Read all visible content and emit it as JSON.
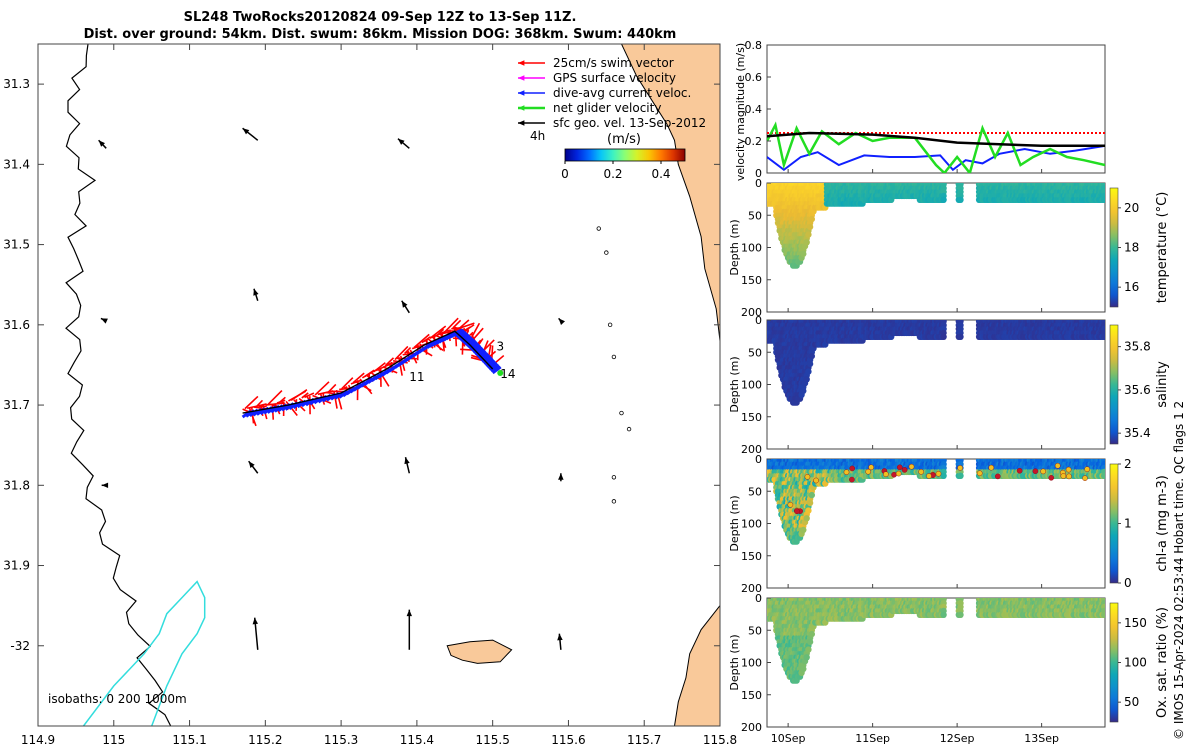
{
  "title": {
    "line1": "SL248 TwoRocks20120824 09-Sep 12Z to 13-Sep 11Z.",
    "line2": "Dist. over ground: 54km. Dist. swum: 86km. Mission DOG: 368km. Swum: 440km"
  },
  "credit": "© IMOS 15-Apr-2024 02:53:44 Hobart time. QC flags 1  2",
  "colors": {
    "land": "#f9c99a",
    "swim": "#ff0000",
    "gps": "#ff00ff",
    "current": "#1020ff",
    "net": "#22dd22",
    "geo": "#000000",
    "isobath200": "#000000",
    "isobath1000": "#33dddd"
  },
  "chart_data": [
    {
      "type": "map",
      "xlim": [
        114.9,
        115.8
      ],
      "ylim": [
        -32.1,
        -31.25
      ],
      "x_ticks": [
        114.9,
        115,
        115.1,
        115.2,
        115.3,
        115.4,
        115.5,
        115.6,
        115.7,
        115.8
      ],
      "x_tick_labels": [
        "114.9",
        "115",
        "115.1",
        "115.2",
        "115.3",
        "115.4",
        "115.5",
        "115.6",
        "115.7",
        "115.8"
      ],
      "y_ticks": [
        -31.3,
        -31.4,
        -31.5,
        -31.6,
        -31.7,
        -31.8,
        -31.9,
        -32
      ],
      "y_tick_labels": [
        "31.3",
        "31.4",
        "31.5",
        "31.6",
        "31.7",
        "31.8",
        "31.9",
        "-32"
      ],
      "legend": {
        "placement": "top-right",
        "entries": [
          "25cm/s swim vector",
          "GPS surface velocity",
          "dive-avg current veloc.",
          "net glider velocity",
          "sfc geo. vel. 13-Sep-2012"
        ],
        "duration_label": "4h",
        "colorbar_title": "(m/s)",
        "colorbar_ticks": [
          "0",
          "0.2",
          "0.4"
        ],
        "colorbar_range": [
          0,
          0.5
        ]
      },
      "isobath_label": "isobaths: 0   200  1000m",
      "glider_track": [
        [
          115.17,
          -31.71
        ],
        [
          115.23,
          -31.7
        ],
        [
          115.3,
          -31.685
        ],
        [
          115.36,
          -31.655
        ],
        [
          115.41,
          -31.625
        ],
        [
          115.45,
          -31.608
        ],
        [
          115.47,
          -31.625
        ],
        [
          115.5,
          -31.655
        ]
      ],
      "day_labels": [
        {
          "label": "11",
          "lon": 115.39,
          "lat": -31.67
        },
        {
          "label": "3",
          "lon": 115.505,
          "lat": -31.632
        },
        {
          "label": "14",
          "lon": 115.51,
          "lat": -31.666
        }
      ],
      "geo_vectors": [
        [
          114.99,
          -31.38,
          0.01,
          -0.01
        ],
        [
          115.19,
          -31.37,
          0.02,
          -0.015
        ],
        [
          115.39,
          -31.38,
          0.015,
          -0.012
        ],
        [
          114.99,
          -31.595,
          0.007,
          -0.003
        ],
        [
          115.19,
          -31.57,
          0.005,
          -0.015
        ],
        [
          115.39,
          -31.585,
          0.01,
          -0.015
        ],
        [
          115.59,
          -31.595,
          0.003,
          -0.003
        ],
        [
          114.99,
          -31.8,
          0.006,
          0
        ],
        [
          115.19,
          -31.785,
          0.012,
          -0.015
        ],
        [
          115.39,
          -31.785,
          0.005,
          -0.02
        ],
        [
          115.59,
          -31.795,
          0,
          -0.01
        ],
        [
          115.19,
          -32.005,
          0.004,
          -0.04
        ],
        [
          115.39,
          -32.005,
          0,
          -0.05
        ],
        [
          115.59,
          -32.005,
          0.002,
          -0.02
        ]
      ]
    },
    {
      "type": "line",
      "ylabel": "velocity magnitude (m/s)",
      "ylim": [
        0,
        0.8
      ],
      "y_tick_labels": [
        "0",
        "0.2",
        "0.4",
        "0.6",
        "0.8"
      ],
      "x_range_days": [
        9.75,
        13.75
      ],
      "series": [
        {
          "name": "swim speed",
          "color": "#ff0000",
          "style": "dotted",
          "x": [
            9.75,
            10.5,
            11.0,
            11.5,
            12.0,
            12.5,
            13.0,
            13.5,
            13.75
          ],
          "y": [
            0.25,
            0.25,
            0.25,
            0.25,
            0.25,
            0.25,
            0.25,
            0.25,
            0.25
          ]
        },
        {
          "name": "dive-avg current",
          "color": "#1020ff",
          "x": [
            9.75,
            9.95,
            10.15,
            10.35,
            10.6,
            10.9,
            11.2,
            11.5,
            11.8,
            11.95,
            12.1,
            12.3,
            12.5,
            12.8,
            13.1,
            13.4,
            13.75
          ],
          "y": [
            0.1,
            0.02,
            0.1,
            0.13,
            0.05,
            0.11,
            0.1,
            0.1,
            0.11,
            0.02,
            0.08,
            0.06,
            0.12,
            0.15,
            0.12,
            0.14,
            0.17
          ]
        },
        {
          "name": "net glider velocity",
          "color": "#22dd22",
          "x": [
            9.75,
            9.85,
            9.95,
            10.1,
            10.25,
            10.4,
            10.6,
            10.8,
            11.0,
            11.2,
            11.5,
            11.75,
            11.85,
            12.0,
            12.15,
            12.3,
            12.45,
            12.6,
            12.75,
            12.9,
            13.1,
            13.3,
            13.5,
            13.75
          ],
          "y": [
            0.2,
            0.3,
            0.05,
            0.28,
            0.12,
            0.26,
            0.18,
            0.25,
            0.2,
            0.22,
            0.22,
            0.05,
            0.0,
            0.1,
            0.0,
            0.28,
            0.1,
            0.25,
            0.05,
            0.1,
            0.15,
            0.1,
            0.08,
            0.05
          ]
        },
        {
          "name": "mean swim",
          "color": "#000000",
          "x": [
            9.75,
            10.25,
            11.0,
            11.5,
            12.0,
            12.5,
            13.0,
            13.75
          ],
          "y": [
            0.23,
            0.25,
            0.24,
            0.22,
            0.19,
            0.18,
            0.17,
            0.17
          ]
        }
      ]
    },
    {
      "type": "heatmap",
      "variable": "temperature",
      "colorbar_label": "temperature (°C)",
      "clim": [
        15,
        21
      ],
      "colorbar_ticks": [
        16,
        18,
        20
      ],
      "ylabel": "Depth (m)",
      "y_tick_labels": [
        "0",
        "50",
        "100",
        "150",
        "200"
      ],
      "palette": "parula"
    },
    {
      "type": "heatmap",
      "variable": "salinity",
      "colorbar_label": "salinity",
      "clim": [
        35.35,
        35.9
      ],
      "colorbar_ticks": [
        35.4,
        35.6,
        35.8
      ],
      "ylabel": "Depth (m)",
      "y_tick_labels": [
        "0",
        "50",
        "100",
        "150",
        "200"
      ],
      "palette": "parula"
    },
    {
      "type": "heatmap",
      "variable": "chl-a",
      "colorbar_label": "chl-a (mg m-3)",
      "clim": [
        0,
        2
      ],
      "colorbar_ticks": [
        0,
        1,
        2
      ],
      "ylabel": "Depth (m)",
      "y_tick_labels": [
        "0",
        "50",
        "100",
        "150",
        "200"
      ],
      "palette": "parula"
    },
    {
      "type": "heatmap",
      "variable": "oxygen",
      "colorbar_label": "Ox. sat. ratio (%)",
      "clim": [
        25,
        175
      ],
      "colorbar_ticks": [
        50,
        100,
        150
      ],
      "ylabel": "Depth (m)",
      "y_tick_labels": [
        "0",
        "50",
        "100",
        "150",
        "200"
      ],
      "palette": "parula"
    }
  ],
  "time_axis": {
    "labels": [
      "10Sep",
      "11Sep",
      "12Sep",
      "13Sep"
    ],
    "days": [
      10,
      11,
      12,
      13
    ]
  }
}
